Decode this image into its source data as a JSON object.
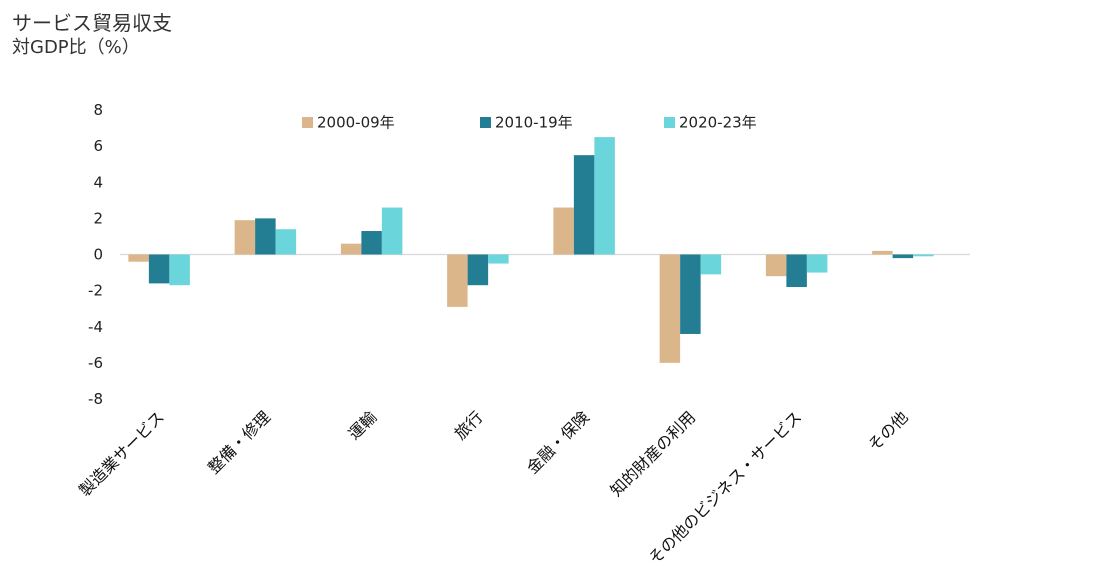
{
  "chart_data": {
    "type": "bar",
    "title": "サービス貿易収支",
    "subtitle": "対GDP比（%）",
    "categories": [
      "製造業サービス",
      "整備・修理",
      "運輸",
      "旅行",
      "金融・保険",
      "知的財産の利用",
      "その他のビジネス・サービス",
      "その他"
    ],
    "series": [
      {
        "name": "2000-09年",
        "color": "#dcb68b",
        "values": [
          -0.4,
          1.9,
          0.6,
          -2.9,
          2.6,
          -6.0,
          -1.2,
          0.2
        ]
      },
      {
        "name": "2010-19年",
        "color": "#237e94",
        "values": [
          -1.6,
          2.0,
          1.3,
          -1.7,
          5.5,
          -4.4,
          -1.8,
          -0.2
        ]
      },
      {
        "name": "2020-23年",
        "color": "#6bd5dc",
        "values": [
          -1.7,
          1.4,
          2.6,
          -0.5,
          6.5,
          -1.1,
          -1.0,
          -0.1
        ]
      }
    ],
    "yticks": [
      8,
      6,
      4,
      2,
      0,
      -2,
      -4,
      -6,
      -8
    ],
    "ylim": [
      -8,
      8
    ],
    "legend_position": "top",
    "grid": false
  }
}
